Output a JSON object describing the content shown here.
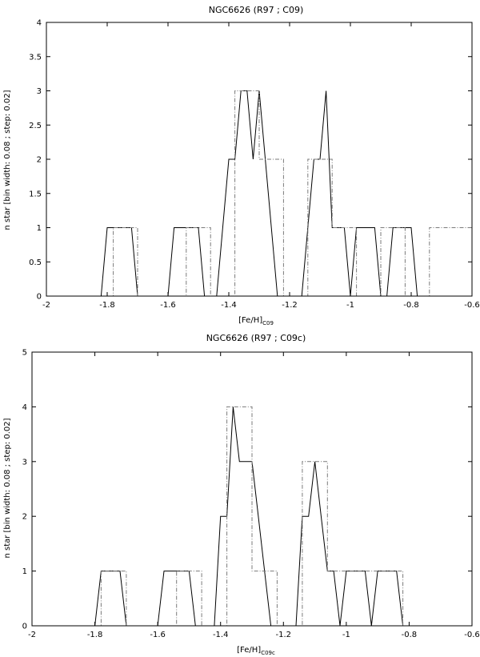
{
  "chart_data": [
    {
      "type": "line",
      "title": "NGC6626 (R97 ; C09)",
      "xlabel_main": "[Fe/H]",
      "xlabel_sub": "C09",
      "ylabel": "n star [bin width: 0.08 ; step: 0.02]",
      "xlim": [
        -2,
        -0.6
      ],
      "ylim": [
        0,
        4
      ],
      "xticks": [
        -2,
        -1.8,
        -1.6,
        -1.4,
        -1.2,
        -1,
        -0.8,
        -0.6
      ],
      "xtick_labels": [
        "-2",
        "-1.8",
        "-1.6",
        "-1.4",
        "-1.2",
        "-1",
        "-0.8",
        "-0.6"
      ],
      "yticks": [
        0,
        0.5,
        1,
        1.5,
        2,
        2.5,
        3,
        3.5,
        4
      ],
      "ytick_labels": [
        "0",
        "0.5",
        "1",
        "1.5",
        "2",
        "2.5",
        "3",
        "3.5",
        "4"
      ],
      "grid": false,
      "series": [
        {
          "style": "solid",
          "x": [
            -1.82,
            -1.8,
            -1.78,
            -1.76,
            -1.74,
            -1.72,
            -1.7,
            -1.6,
            -1.58,
            -1.56,
            -1.54,
            -1.52,
            -1.5,
            -1.48,
            -1.44,
            -1.42,
            -1.4,
            -1.38,
            -1.36,
            -1.34,
            -1.32,
            -1.3,
            -1.28,
            -1.26,
            -1.24,
            -1.22,
            -1.16,
            -1.14,
            -1.12,
            -1.1,
            -1.08,
            -1.06,
            -1.04,
            -1.02,
            -1.0,
            -0.98,
            -0.96,
            -0.94,
            -0.92,
            -0.9,
            -0.88,
            -0.86,
            -0.84,
            -0.82,
            -0.8,
            -0.78,
            -0.76
          ],
          "y": [
            0,
            1,
            1,
            1,
            1,
            1,
            0,
            0,
            1,
            1,
            1,
            1,
            1,
            0,
            0,
            1,
            2,
            2,
            3,
            3,
            2,
            3,
            2,
            1,
            0,
            0,
            0,
            1,
            2,
            2,
            3,
            1,
            1,
            1,
            0,
            1,
            1,
            1,
            1,
            0,
            0,
            1,
            1,
            1,
            1,
            0,
            0
          ]
        },
        {
          "style": "dashdot",
          "x": [
            -2,
            -1.78,
            -1.78,
            -1.7,
            -1.7,
            -1.54,
            -1.54,
            -1.46,
            -1.46,
            -1.38,
            -1.38,
            -1.3,
            -1.3,
            -1.22,
            -1.22,
            -1.14,
            -1.14,
            -1.06,
            -1.06,
            -0.98,
            -0.98,
            -0.9,
            -0.9,
            -0.82,
            -0.82,
            -0.74,
            -0.74,
            -0.6
          ],
          "y": [
            0,
            0,
            1,
            1,
            0,
            0,
            1,
            1,
            0,
            0,
            3,
            3,
            2,
            2,
            0,
            0,
            2,
            2,
            1,
            1,
            0,
            0,
            1,
            1,
            0,
            0,
            1,
            1
          ]
        }
      ]
    },
    {
      "type": "line",
      "title": "NGC6626 (R97 ; C09c)",
      "xlabel_main": "[Fe/H]",
      "xlabel_sub": "C09c",
      "ylabel": "n star [bin width: 0.08 ; step: 0.02]",
      "xlim": [
        -2,
        -0.6
      ],
      "ylim": [
        0,
        5
      ],
      "xticks": [
        -2,
        -1.8,
        -1.6,
        -1.4,
        -1.2,
        -1,
        -0.8,
        -0.6
      ],
      "xtick_labels": [
        "-2",
        "-1.8",
        "-1.6",
        "-1.4",
        "-1.2",
        "-1",
        "-0.8",
        "-0.6"
      ],
      "yticks": [
        0,
        1,
        2,
        3,
        4,
        5
      ],
      "ytick_labels": [
        "0",
        "1",
        "2",
        "3",
        "4",
        "5"
      ],
      "grid": false,
      "series": [
        {
          "style": "solid",
          "x": [
            -1.8,
            -1.78,
            -1.76,
            -1.74,
            -1.72,
            -1.7,
            -1.6,
            -1.58,
            -1.56,
            -1.54,
            -1.52,
            -1.5,
            -1.48,
            -1.42,
            -1.4,
            -1.38,
            -1.36,
            -1.34,
            -1.32,
            -1.3,
            -1.28,
            -1.26,
            -1.24,
            -1.16,
            -1.14,
            -1.12,
            -1.1,
            -1.08,
            -1.06,
            -1.04,
            -1.02,
            -1.0,
            -0.98,
            -0.96,
            -0.94,
            -0.92,
            -0.9,
            -0.88,
            -0.86,
            -0.84,
            -0.82
          ],
          "y": [
            0,
            1,
            1,
            1,
            1,
            0,
            0,
            1,
            1,
            1,
            1,
            1,
            0,
            0,
            2,
            2,
            4,
            3,
            3,
            3,
            2,
            1,
            0,
            0,
            2,
            2,
            3,
            2,
            1,
            1,
            0,
            1,
            1,
            1,
            1,
            0,
            1,
            1,
            1,
            1,
            0
          ]
        },
        {
          "style": "dashdot",
          "x": [
            -2,
            -1.78,
            -1.78,
            -1.7,
            -1.7,
            -1.54,
            -1.54,
            -1.46,
            -1.46,
            -1.38,
            -1.38,
            -1.3,
            -1.3,
            -1.22,
            -1.22,
            -1.14,
            -1.14,
            -1.06,
            -1.06,
            -0.98,
            -0.98,
            -0.82,
            -0.82,
            -0.6
          ],
          "y": [
            0,
            0,
            1,
            1,
            0,
            0,
            1,
            1,
            0,
            0,
            4,
            4,
            1,
            1,
            0,
            0,
            3,
            3,
            1,
            1,
            1,
            1,
            0,
            0
          ]
        }
      ]
    }
  ]
}
